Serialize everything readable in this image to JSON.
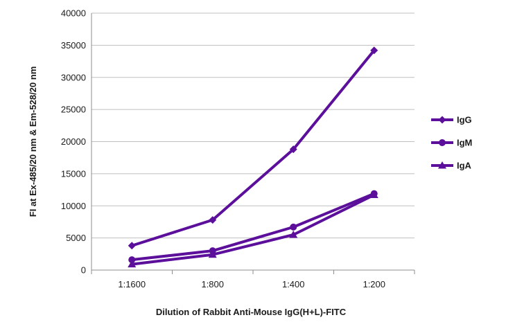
{
  "chart_data": {
    "type": "line",
    "title": "",
    "xlabel": "Dilution of Rabbit Anti-Mouse IgG(H+L)-FITC",
    "ylabel": "FI at Ex-485/20 nm & Em-528/20 nm",
    "categories": [
      "1:1600",
      "1:800",
      "1:400",
      "1:200"
    ],
    "ylim": [
      0,
      40000
    ],
    "yticks": [
      0,
      5000,
      10000,
      15000,
      20000,
      25000,
      30000,
      35000,
      40000
    ],
    "grid": true,
    "legend_position": "right",
    "series": [
      {
        "name": "IgG",
        "marker": "diamond",
        "values": [
          3800,
          7800,
          18800,
          34200
        ]
      },
      {
        "name": "IgM",
        "marker": "circle",
        "values": [
          1600,
          3000,
          6700,
          11900
        ]
      },
      {
        "name": "IgA",
        "marker": "triangle",
        "values": [
          900,
          2400,
          5500,
          11700
        ]
      }
    ],
    "colors": {
      "series": "#5b0f9b",
      "grid": "#bfbfbf",
      "axis": "#8c8c8c"
    }
  }
}
